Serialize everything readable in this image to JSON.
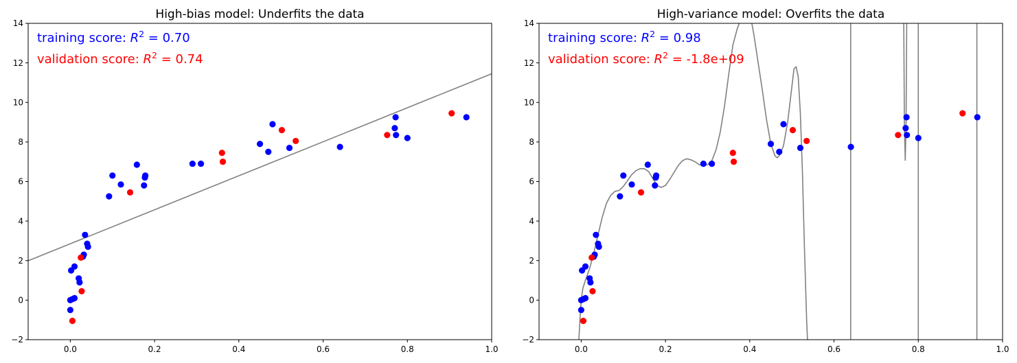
{
  "chart_data": [
    {
      "type": "scatter",
      "title": "High-bias model: Underfits the data",
      "xlim": [
        -0.1,
        1.0
      ],
      "ylim": [
        -2,
        14
      ],
      "x_ticks": [
        0.0,
        0.2,
        0.4,
        0.6,
        0.8,
        1.0
      ],
      "x_tick_labels": [
        "0.0",
        "0.2",
        "0.4",
        "0.6",
        "0.8",
        "1.0"
      ],
      "y_ticks": [
        -2,
        0,
        2,
        4,
        6,
        8,
        10,
        12,
        14
      ],
      "y_tick_labels": [
        "−2",
        "0",
        "2",
        "4",
        "6",
        "8",
        "10",
        "12",
        "14"
      ],
      "annotations": [
        {
          "prefix": "training score: ",
          "r2": "R",
          "sup": "2",
          "suffix": " = 0.70",
          "color": "#0000ff"
        },
        {
          "prefix": "validation score: ",
          "r2": "R",
          "sup": "2",
          "suffix": " = 0.74",
          "color": "#ff0000"
        }
      ],
      "series": [
        {
          "role": "training",
          "color": "#0000ff",
          "points": [
            [
              0.0,
              0.0
            ],
            [
              0.005,
              0.05
            ],
            [
              0.01,
              0.1
            ],
            [
              0.0,
              -0.5
            ],
            [
              0.002,
              1.5
            ],
            [
              0.01,
              1.7
            ],
            [
              0.02,
              1.1
            ],
            [
              0.022,
              0.9
            ],
            [
              0.03,
              2.2
            ],
            [
              0.032,
              2.3
            ],
            [
              0.035,
              3.3
            ],
            [
              0.04,
              2.85
            ],
            [
              0.042,
              2.7
            ],
            [
              0.092,
              5.25
            ],
            [
              0.1,
              6.3
            ],
            [
              0.12,
              5.85
            ],
            [
              0.158,
              6.85
            ],
            [
              0.175,
              5.8
            ],
            [
              0.177,
              6.2
            ],
            [
              0.178,
              6.3
            ],
            [
              0.29,
              6.9
            ],
            [
              0.31,
              6.9
            ],
            [
              0.45,
              7.9
            ],
            [
              0.47,
              7.5
            ],
            [
              0.48,
              8.9
            ],
            [
              0.52,
              7.7
            ],
            [
              0.64,
              7.75
            ],
            [
              0.77,
              8.7
            ],
            [
              0.772,
              9.25
            ],
            [
              0.773,
              8.35
            ],
            [
              0.8,
              8.2
            ],
            [
              0.94,
              9.25
            ]
          ]
        },
        {
          "role": "validation",
          "color": "#ff0000",
          "points": [
            [
              0.005,
              -1.05
            ],
            [
              0.025,
              2.15
            ],
            [
              0.027,
              0.45
            ],
            [
              0.142,
              5.45
            ],
            [
              0.36,
              7.45
            ],
            [
              0.362,
              7.0
            ],
            [
              0.502,
              8.6
            ],
            [
              0.535,
              8.05
            ],
            [
              0.752,
              8.35
            ],
            [
              0.905,
              9.45
            ]
          ]
        }
      ],
      "model_line": {
        "color": "#808080",
        "slope": 8.6,
        "intercept": 2.85
      }
    },
    {
      "type": "scatter",
      "title": "High-variance model: Overfits the data",
      "xlim": [
        -0.1,
        1.0
      ],
      "ylim": [
        -2,
        14
      ],
      "x_ticks": [
        0.0,
        0.2,
        0.4,
        0.6,
        0.8,
        1.0
      ],
      "x_tick_labels": [
        "0.0",
        "0.2",
        "0.4",
        "0.6",
        "0.8",
        "1.0"
      ],
      "y_ticks": [
        -2,
        0,
        2,
        4,
        6,
        8,
        10,
        12,
        14
      ],
      "y_tick_labels": [
        "−2",
        "0",
        "2",
        "4",
        "6",
        "8",
        "10",
        "12",
        "14"
      ],
      "annotations": [
        {
          "prefix": "training score: ",
          "r2": "R",
          "sup": "2",
          "suffix": " = 0.98",
          "color": "#0000ff"
        },
        {
          "prefix": "validation score: ",
          "r2": "R",
          "sup": "2",
          "suffix": " = -1.8e+09",
          "color": "#ff0000"
        }
      ],
      "series": [
        {
          "role": "training",
          "color": "#0000ff",
          "points": [
            [
              0.0,
              0.0
            ],
            [
              0.005,
              0.05
            ],
            [
              0.01,
              0.1
            ],
            [
              0.0,
              -0.5
            ],
            [
              0.002,
              1.5
            ],
            [
              0.01,
              1.7
            ],
            [
              0.02,
              1.1
            ],
            [
              0.022,
              0.9
            ],
            [
              0.03,
              2.2
            ],
            [
              0.032,
              2.3
            ],
            [
              0.035,
              3.3
            ],
            [
              0.04,
              2.85
            ],
            [
              0.042,
              2.7
            ],
            [
              0.092,
              5.25
            ],
            [
              0.1,
              6.3
            ],
            [
              0.12,
              5.85
            ],
            [
              0.158,
              6.85
            ],
            [
              0.175,
              5.8
            ],
            [
              0.177,
              6.2
            ],
            [
              0.178,
              6.3
            ],
            [
              0.29,
              6.9
            ],
            [
              0.31,
              6.9
            ],
            [
              0.45,
              7.9
            ],
            [
              0.47,
              7.5
            ],
            [
              0.48,
              8.9
            ],
            [
              0.52,
              7.7
            ],
            [
              0.64,
              7.75
            ],
            [
              0.77,
              8.7
            ],
            [
              0.772,
              9.25
            ],
            [
              0.773,
              8.35
            ],
            [
              0.8,
              8.2
            ],
            [
              0.94,
              9.25
            ]
          ]
        },
        {
          "role": "validation",
          "color": "#ff0000",
          "points": [
            [
              0.005,
              -1.05
            ],
            [
              0.025,
              2.15
            ],
            [
              0.027,
              0.45
            ],
            [
              0.142,
              5.45
            ],
            [
              0.36,
              7.45
            ],
            [
              0.362,
              7.0
            ],
            [
              0.502,
              8.6
            ],
            [
              0.535,
              8.05
            ],
            [
              0.752,
              8.35
            ],
            [
              0.905,
              9.45
            ]
          ]
        }
      ],
      "model_line": {
        "color": "#808080",
        "segments": [
          [
            [
              -0.0055,
              -2.0
            ],
            [
              -0.003,
              -1.0
            ],
            [
              0.0,
              0.0
            ],
            [
              0.004,
              0.6
            ],
            [
              0.01,
              1.0
            ],
            [
              0.02,
              1.6
            ],
            [
              0.03,
              2.4
            ],
            [
              0.04,
              3.3
            ],
            [
              0.05,
              4.2
            ],
            [
              0.06,
              4.9
            ],
            [
              0.07,
              5.3
            ],
            [
              0.08,
              5.5
            ],
            [
              0.09,
              5.55
            ],
            [
              0.1,
              5.75
            ],
            [
              0.11,
              6.05
            ],
            [
              0.12,
              6.35
            ],
            [
              0.13,
              6.55
            ],
            [
              0.14,
              6.65
            ],
            [
              0.15,
              6.65
            ],
            [
              0.16,
              6.5
            ],
            [
              0.17,
              6.15
            ],
            [
              0.18,
              5.8
            ],
            [
              0.19,
              5.7
            ],
            [
              0.2,
              5.8
            ],
            [
              0.21,
              6.1
            ],
            [
              0.22,
              6.45
            ],
            [
              0.23,
              6.8
            ],
            [
              0.24,
              7.05
            ],
            [
              0.25,
              7.15
            ],
            [
              0.26,
              7.1
            ],
            [
              0.27,
              7.0
            ],
            [
              0.28,
              6.85
            ],
            [
              0.29,
              6.8
            ],
            [
              0.3,
              6.85
            ],
            [
              0.31,
              7.05
            ],
            [
              0.32,
              7.6
            ],
            [
              0.33,
              8.5
            ],
            [
              0.34,
              9.8
            ],
            [
              0.35,
              11.4
            ],
            [
              0.36,
              12.9
            ],
            [
              0.37,
              13.7
            ],
            [
              0.375,
              14.0
            ]
          ],
          [
            [
              0.405,
              14.0
            ],
            [
              0.41,
              13.4
            ],
            [
              0.42,
              12.0
            ],
            [
              0.43,
              10.6
            ],
            [
              0.44,
              9.1
            ],
            [
              0.45,
              7.9
            ],
            [
              0.46,
              7.3
            ],
            [
              0.465,
              7.2
            ],
            [
              0.47,
              7.3
            ],
            [
              0.48,
              7.8
            ],
            [
              0.49,
              9.0
            ],
            [
              0.5,
              10.8
            ],
            [
              0.505,
              11.7
            ],
            [
              0.51,
              11.8
            ],
            [
              0.515,
              11.3
            ],
            [
              0.52,
              9.5
            ],
            [
              0.525,
              6.5
            ],
            [
              0.53,
              2.5
            ],
            [
              0.535,
              -1.0
            ],
            [
              0.537,
              -2.0
            ]
          ],
          [
            [
              0.6395,
              14.0
            ],
            [
              0.6395,
              -2.0
            ]
          ],
          [
            [
              0.7655,
              14.0
            ],
            [
              0.767,
              9.0
            ],
            [
              0.769,
              7.05
            ],
            [
              0.771,
              9.0
            ],
            [
              0.7725,
              14.0
            ]
          ],
          [
            [
              0.8,
              14.0
            ],
            [
              0.8,
              -2.0
            ]
          ],
          [
            [
              0.939,
              14.0
            ],
            [
              0.939,
              -2.0
            ]
          ]
        ]
      }
    }
  ]
}
